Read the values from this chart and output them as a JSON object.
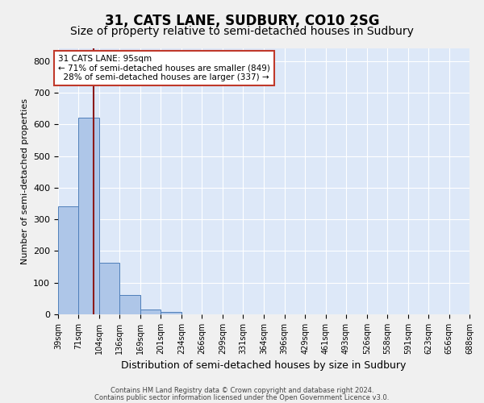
{
  "title": "31, CATS LANE, SUDBURY, CO10 2SG",
  "subtitle": "Size of property relative to semi-detached houses in Sudbury",
  "xlabel": "Distribution of semi-detached houses by size in Sudbury",
  "ylabel": "Number of semi-detached properties",
  "footnote1": "Contains HM Land Registry data © Crown copyright and database right 2024.",
  "footnote2": "Contains public sector information licensed under the Open Government Licence v3.0.",
  "property_label": "31 CATS LANE: 95sqm",
  "pct_smaller": "71% of semi-detached houses are smaller (849)",
  "pct_larger": "28% of semi-detached houses are larger (337)",
  "property_value": 95,
  "bin_edges": [
    39,
    71,
    104,
    136,
    169,
    201,
    234,
    266,
    299,
    331,
    364,
    396,
    429,
    461,
    493,
    526,
    558,
    591,
    623,
    656,
    688
  ],
  "bin_counts": [
    340,
    622,
    163,
    60,
    16,
    8,
    0,
    0,
    0,
    0,
    0,
    0,
    0,
    0,
    0,
    0,
    0,
    0,
    0,
    0
  ],
  "bar_color": "#aec6e8",
  "bar_edge_color": "#4f7fba",
  "vline_color": "#8b1a1a",
  "annotation_box_color": "#ffffff",
  "annotation_box_edge": "#c0392b",
  "ylim": [
    0,
    840
  ],
  "yticks": [
    0,
    100,
    200,
    300,
    400,
    500,
    600,
    700,
    800
  ],
  "bg_color": "#dde8f8",
  "grid_color": "#ffffff",
  "title_fontsize": 12,
  "subtitle_fontsize": 10,
  "xlabel_fontsize": 9,
  "ylabel_fontsize": 8
}
